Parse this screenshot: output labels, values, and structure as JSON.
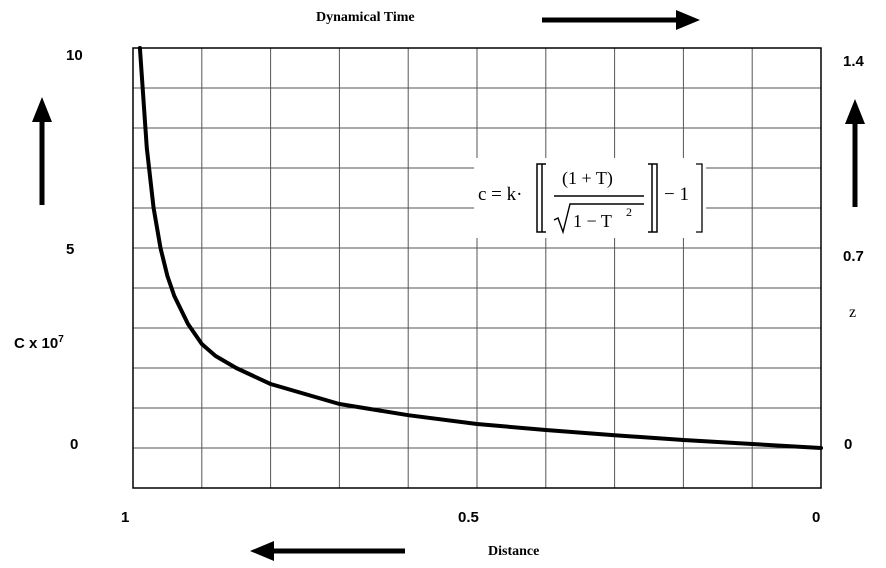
{
  "chart_data": {
    "type": "line",
    "title": "",
    "top_label": "Dynamical Time",
    "xlabel": "Distance",
    "ylabel_left": "C x 10",
    "ylabel_left_exponent": "7",
    "ylabel_right": "z",
    "x_ticks": [
      "1",
      "0.5",
      "0"
    ],
    "x_range": [
      1,
      0
    ],
    "y_left_ticks": [
      "10",
      "5",
      "0"
    ],
    "y_left_range": [
      -1,
      10
    ],
    "y_right_ticks": [
      "1.4",
      "0.7",
      "0"
    ],
    "grid": true,
    "formula": {
      "lhs": "c = k·",
      "numerator": "(1 + T)",
      "denominator": "1 − T",
      "denominator_exponent": "2",
      "tail": "− 1"
    },
    "series": [
      {
        "name": "c",
        "x": [
          0.99,
          0.98,
          0.97,
          0.96,
          0.95,
          0.94,
          0.92,
          0.9,
          0.88,
          0.85,
          0.8,
          0.75,
          0.7,
          0.6,
          0.5,
          0.4,
          0.3,
          0.2,
          0.1,
          0.0
        ],
        "values": [
          10.0,
          7.5,
          6.0,
          5.0,
          4.3,
          3.8,
          3.1,
          2.6,
          2.3,
          2.0,
          1.6,
          1.35,
          1.1,
          0.82,
          0.6,
          0.45,
          0.32,
          0.2,
          0.1,
          0.0
        ]
      }
    ]
  }
}
